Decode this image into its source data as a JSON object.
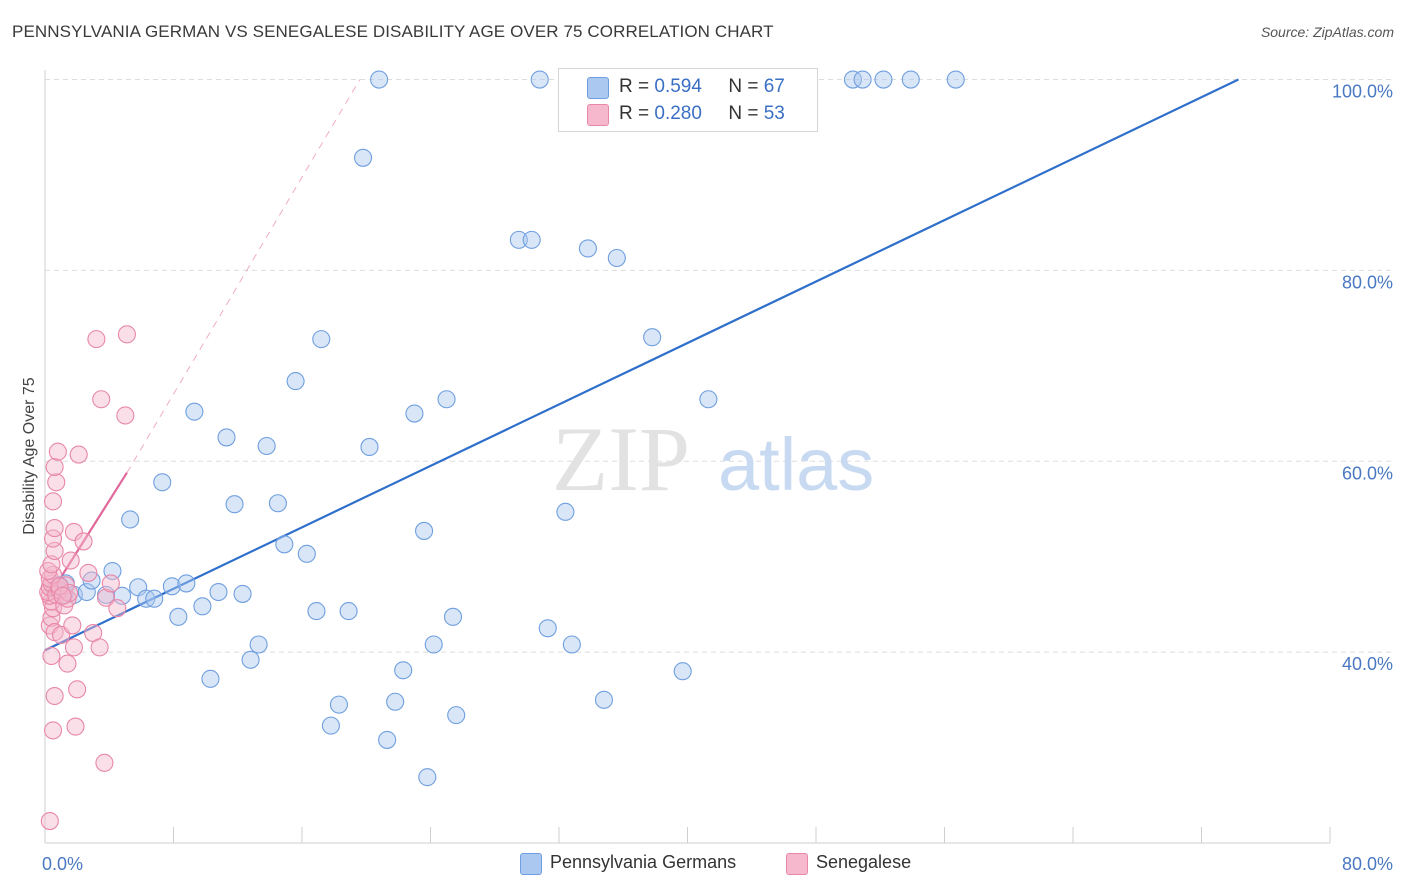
{
  "header": {
    "title": "PENNSYLVANIA GERMAN VS SENEGALESE DISABILITY AGE OVER 75 CORRELATION CHART",
    "source": "Source: ZipAtlas.com"
  },
  "watermark": {
    "zip": "ZIP",
    "atlas": "atlas"
  },
  "legend": {
    "r_label": "R =",
    "n_label": "N =",
    "series_a": {
      "r": "0.594",
      "n": "67"
    },
    "series_b": {
      "r": "0.280",
      "n": "53"
    }
  },
  "colors": {
    "blue_fill": "#aac8f0",
    "blue_stroke": "#6f9fdf",
    "blue_line": "#2f6fcc",
    "pink_fill": "#f5b8cc",
    "pink_stroke": "#e887a8",
    "pink_line": "#e0689a",
    "grid": "#dddddd",
    "axis_text": "#4a78c2"
  },
  "chart_data": {
    "type": "scatter",
    "title": "PENNSYLVANIA GERMAN VS SENEGALESE DISABILITY AGE OVER 75 CORRELATION CHART",
    "xlabel": "",
    "ylabel": "Disability Age Over 75",
    "xlim": [
      0,
      80
    ],
    "ylim": [
      20,
      101
    ],
    "x_tick_labels": [
      "0.0%",
      "80.0%"
    ],
    "y_tick_labels": [
      "40.0%",
      "60.0%",
      "80.0%",
      "100.0%"
    ],
    "y_ticks": [
      40,
      60,
      80,
      100
    ],
    "grid": true,
    "legend_position": "top-center",
    "series": [
      {
        "name": "Pennsylvania Germans",
        "r": 0.594,
        "n": 67,
        "trend": {
          "x0": 0.0,
          "y0": 40.2,
          "x1": 74.3,
          "y1": 100.0
        },
        "points": [
          [
            0.6,
            46.5
          ],
          [
            0.9,
            47.0
          ],
          [
            1.3,
            47.2
          ],
          [
            1.2,
            46.0
          ],
          [
            1.8,
            46.0
          ],
          [
            2.6,
            46.3
          ],
          [
            2.9,
            47.5
          ],
          [
            3.8,
            46.0
          ],
          [
            4.2,
            48.5
          ],
          [
            4.8,
            45.9
          ],
          [
            5.3,
            53.9
          ],
          [
            5.8,
            46.8
          ],
          [
            6.3,
            45.6
          ],
          [
            6.8,
            45.6
          ],
          [
            7.3,
            57.8
          ],
          [
            7.9,
            46.9
          ],
          [
            8.3,
            43.7
          ],
          [
            8.8,
            47.2
          ],
          [
            9.3,
            65.2
          ],
          [
            9.8,
            44.8
          ],
          [
            10.3,
            37.2
          ],
          [
            10.8,
            46.3
          ],
          [
            11.3,
            62.5
          ],
          [
            11.8,
            55.5
          ],
          [
            12.3,
            46.1
          ],
          [
            12.8,
            39.2
          ],
          [
            13.3,
            40.8
          ],
          [
            13.8,
            61.6
          ],
          [
            14.5,
            55.6
          ],
          [
            14.9,
            51.3
          ],
          [
            15.6,
            68.4
          ],
          [
            16.3,
            50.3
          ],
          [
            16.9,
            44.3
          ],
          [
            17.2,
            72.8
          ],
          [
            17.8,
            32.3
          ],
          [
            18.3,
            34.5
          ],
          [
            18.9,
            44.3
          ],
          [
            19.8,
            91.8
          ],
          [
            20.2,
            61.5
          ],
          [
            20.8,
            100.0
          ],
          [
            21.3,
            30.8
          ],
          [
            21.8,
            34.8
          ],
          [
            22.3,
            38.1
          ],
          [
            23.0,
            65.0
          ],
          [
            23.6,
            52.7
          ],
          [
            23.8,
            26.9
          ],
          [
            24.2,
            40.8
          ],
          [
            25.0,
            66.5
          ],
          [
            25.4,
            43.7
          ],
          [
            25.6,
            33.4
          ],
          [
            29.5,
            83.2
          ],
          [
            30.3,
            83.2
          ],
          [
            30.8,
            100.0
          ],
          [
            31.3,
            42.5
          ],
          [
            32.4,
            54.7
          ],
          [
            32.8,
            40.8
          ],
          [
            33.8,
            82.3
          ],
          [
            34.8,
            35.0
          ],
          [
            35.6,
            81.3
          ],
          [
            37.8,
            73.0
          ],
          [
            39.7,
            38.0
          ],
          [
            41.3,
            66.5
          ],
          [
            50.3,
            100.0
          ],
          [
            50.9,
            100.0
          ],
          [
            52.2,
            100.0
          ],
          [
            53.9,
            100.0
          ],
          [
            56.7,
            100.0
          ]
        ]
      },
      {
        "name": "Senegalese",
        "r": 0.28,
        "n": 53,
        "trend": {
          "x0": 0.0,
          "y0": 45.2,
          "x1": 5.1,
          "y1": 58.8
        },
        "trend_ext": {
          "x0": 5.1,
          "y0": 58.8,
          "x1": 19.6,
          "y1": 100.0
        },
        "points": [
          [
            0.3,
            22.3
          ],
          [
            0.5,
            31.8
          ],
          [
            0.6,
            35.4
          ],
          [
            0.4,
            39.6
          ],
          [
            0.3,
            42.8
          ],
          [
            0.4,
            43.6
          ],
          [
            0.5,
            44.6
          ],
          [
            0.4,
            45.3
          ],
          [
            0.3,
            45.9
          ],
          [
            0.2,
            46.3
          ],
          [
            0.3,
            46.8
          ],
          [
            0.4,
            47.2
          ],
          [
            0.3,
            47.7
          ],
          [
            0.5,
            48.1
          ],
          [
            0.2,
            48.5
          ],
          [
            0.4,
            49.2
          ],
          [
            0.6,
            50.6
          ],
          [
            0.5,
            51.9
          ],
          [
            0.6,
            53.0
          ],
          [
            0.5,
            55.8
          ],
          [
            0.7,
            57.8
          ],
          [
            0.6,
            59.4
          ],
          [
            0.8,
            61.0
          ],
          [
            0.7,
            46.0
          ],
          [
            0.9,
            46.5
          ],
          [
            0.6,
            42.1
          ],
          [
            1.0,
            41.8
          ],
          [
            1.2,
            44.9
          ],
          [
            1.4,
            45.6
          ],
          [
            1.3,
            47.0
          ],
          [
            1.5,
            46.2
          ],
          [
            1.6,
            49.6
          ],
          [
            1.8,
            52.6
          ],
          [
            1.4,
            38.8
          ],
          [
            1.8,
            40.5
          ],
          [
            2.0,
            36.1
          ],
          [
            1.9,
            32.2
          ],
          [
            1.7,
            42.8
          ],
          [
            2.1,
            60.7
          ],
          [
            2.4,
            51.6
          ],
          [
            2.7,
            48.3
          ],
          [
            3.2,
            72.8
          ],
          [
            3.0,
            42.0
          ],
          [
            3.5,
            66.5
          ],
          [
            3.4,
            40.5
          ],
          [
            3.8,
            45.7
          ],
          [
            4.1,
            47.2
          ],
          [
            3.7,
            28.4
          ],
          [
            4.5,
            44.6
          ],
          [
            5.0,
            64.8
          ],
          [
            5.1,
            73.3
          ],
          [
            0.9,
            46.9
          ],
          [
            1.1,
            45.9
          ]
        ]
      }
    ]
  },
  "bottom_legend": {
    "series_a_label": "Pennsylvania Germans",
    "series_b_label": "Senegalese"
  }
}
